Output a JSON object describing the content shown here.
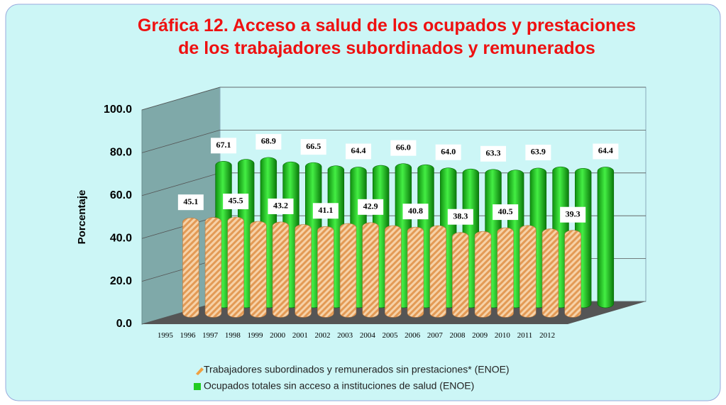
{
  "chart_data": {
    "type": "bar3d",
    "title": "Gráfica 12. Acceso a salud de los ocupados y prestaciones",
    "subtitle": "de los trabajadores subordinados y remunerados",
    "y_label": "Porcentaje",
    "categories": [
      "1995",
      "1996",
      "1997",
      "1998",
      "1999",
      "2000",
      "2001",
      "2002",
      "2003",
      "2004",
      "2005",
      "2006",
      "2007",
      "2008",
      "2009",
      "2010",
      "2011",
      "2012"
    ],
    "series": [
      {
        "name": "Trabajadores subordinados y remunerados sin prestaciones* (ENOE)",
        "color": "#f0b070",
        "values": [
          45.1,
          45.3,
          45.5,
          43.5,
          43.2,
          42.0,
          41.1,
          42.5,
          42.9,
          41.5,
          40.8,
          41.5,
          38.3,
          38.8,
          40.5,
          41.6,
          40.0,
          39.3
        ],
        "value_labels": [
          "45.1",
          null,
          "45.5",
          null,
          "43.2",
          null,
          "41.1",
          null,
          "42.9",
          null,
          "40.8",
          null,
          "38.3",
          null,
          "40.5",
          null,
          null,
          "39.3"
        ]
      },
      {
        "name": "Ocupados totales sin acceso a instituciones de salud (ENOE)",
        "color": "#22cc22",
        "values": [
          67.1,
          68.0,
          68.9,
          66.8,
          66.5,
          65.0,
          64.4,
          65.2,
          66.0,
          65.5,
          64.0,
          63.5,
          63.3,
          63.0,
          63.9,
          64.5,
          63.8,
          64.4
        ],
        "value_labels": [
          "67.1",
          null,
          "68.9",
          null,
          "66.5",
          null,
          "64.4",
          null,
          "66.0",
          null,
          "64.0",
          null,
          "63.3",
          null,
          "63.9",
          null,
          null,
          "64.4"
        ]
      }
    ],
    "ylim": [
      0,
      100
    ],
    "yticks": [
      {
        "value": 0,
        "label": "0.0"
      },
      {
        "value": 20,
        "label": "20.0"
      },
      {
        "value": 40,
        "label": "40.0"
      },
      {
        "value": 60,
        "label": "60.0"
      },
      {
        "value": 80,
        "label": "80.0"
      },
      {
        "value": 100,
        "label": "100.0"
      }
    ],
    "grid": true,
    "legend": "bottom"
  }
}
